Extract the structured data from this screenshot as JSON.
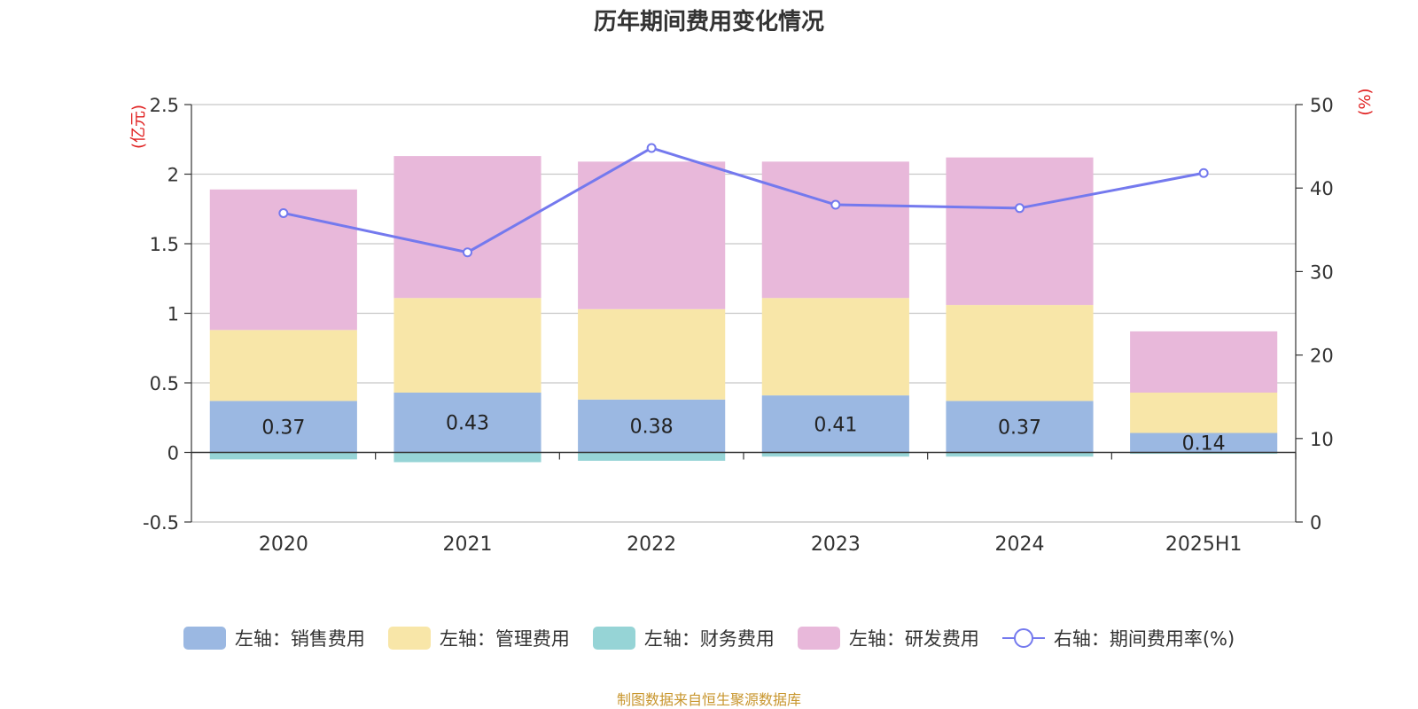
{
  "chart_data": {
    "type": "bar",
    "title": "历年期间费用变化情况",
    "categories": [
      "2020",
      "2021",
      "2022",
      "2023",
      "2024",
      "2025H1"
    ],
    "left_axis": {
      "label": "(亿元)",
      "ylim": [
        -0.5,
        2.5
      ],
      "ticks": [
        "-0.5",
        "0",
        "0.5",
        "1",
        "1.5",
        "2",
        "2.5"
      ]
    },
    "right_axis": {
      "label": "(%)",
      "ylim": [
        0,
        50
      ],
      "ticks": [
        "0",
        "10",
        "20",
        "30",
        "40",
        "50"
      ]
    },
    "grid": true,
    "legend_position": "bottom",
    "series": [
      {
        "name": "左轴：销售费用",
        "kind": "bar",
        "axis": "left",
        "color": "#9bb8e2",
        "values": [
          0.37,
          0.43,
          0.38,
          0.41,
          0.37,
          0.14
        ],
        "labels": [
          "0.37",
          "0.43",
          "0.38",
          "0.41",
          "0.37",
          "0.14"
        ]
      },
      {
        "name": "左轴：管理费用",
        "kind": "bar",
        "axis": "left",
        "color": "#f8e6a8",
        "values": [
          0.51,
          0.68,
          0.65,
          0.7,
          0.69,
          0.29
        ]
      },
      {
        "name": "左轴：财务费用",
        "kind": "bar",
        "axis": "left",
        "color": "#96d4d6",
        "values": [
          -0.05,
          -0.07,
          -0.06,
          -0.03,
          -0.03,
          -0.01
        ]
      },
      {
        "name": "左轴：研发费用",
        "kind": "bar",
        "axis": "left",
        "color": "#e8b8da",
        "values": [
          1.01,
          1.02,
          1.06,
          0.98,
          1.06,
          0.44
        ]
      },
      {
        "name": "右轴：期间费用率(%)",
        "kind": "line",
        "axis": "right",
        "color": "#7479ee",
        "values": [
          37.0,
          32.3,
          44.8,
          38.0,
          37.6,
          41.8
        ]
      }
    ],
    "source": "制图数据来自恒生聚源数据库"
  }
}
